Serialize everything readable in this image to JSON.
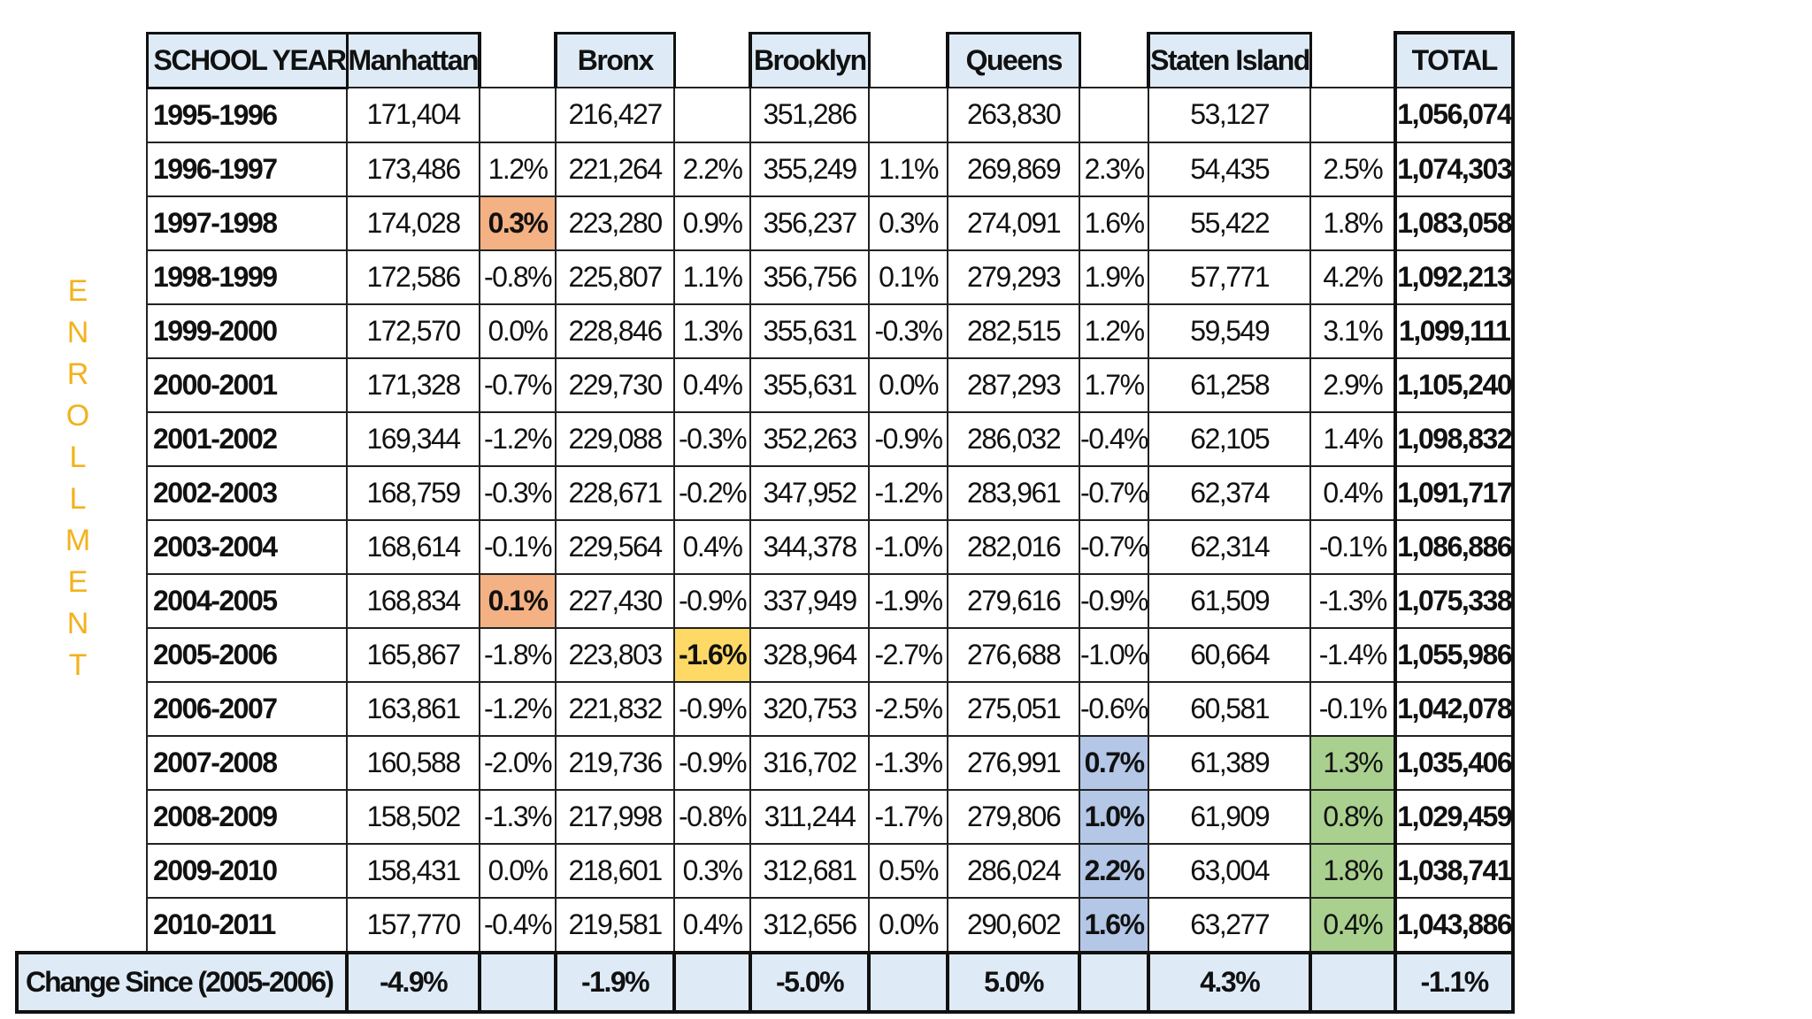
{
  "side_label": "ENROLLMENT",
  "headers": {
    "school_year": "SCHOOL YEAR",
    "manhattan": "Manhattan",
    "bronx": "Bronx",
    "brooklyn": "Brooklyn",
    "queens": "Queens",
    "staten_island": "Staten Island",
    "total": "TOTAL"
  },
  "rows": [
    [
      "1995-1996",
      "171,404",
      "",
      "216,427",
      "",
      "351,286",
      "",
      "263,830",
      "",
      "53,127",
      "",
      "1,056,074"
    ],
    [
      "1996-1997",
      "173,486",
      "1.2%",
      "221,264",
      "2.2%",
      "355,249",
      "1.1%",
      "269,869",
      "2.3%",
      "54,435",
      "2.5%",
      "1,074,303"
    ],
    [
      "1997-1998",
      "174,028",
      "0.3%",
      "223,280",
      "0.9%",
      "356,237",
      "0.3%",
      "274,091",
      "1.6%",
      "55,422",
      "1.8%",
      "1,083,058"
    ],
    [
      "1998-1999",
      "172,586",
      "-0.8%",
      "225,807",
      "1.1%",
      "356,756",
      "0.1%",
      "279,293",
      "1.9%",
      "57,771",
      "4.2%",
      "1,092,213"
    ],
    [
      "1999-2000",
      "172,570",
      "0.0%",
      "228,846",
      "1.3%",
      "355,631",
      "-0.3%",
      "282,515",
      "1.2%",
      "59,549",
      "3.1%",
      "1,099,111"
    ],
    [
      "2000-2001",
      "171,328",
      "-0.7%",
      "229,730",
      "0.4%",
      "355,631",
      "0.0%",
      "287,293",
      "1.7%",
      "61,258",
      "2.9%",
      "1,105,240"
    ],
    [
      "2001-2002",
      "169,344",
      "-1.2%",
      "229,088",
      "-0.3%",
      "352,263",
      "-0.9%",
      "286,032",
      "-0.4%",
      "62,105",
      "1.4%",
      "1,098,832"
    ],
    [
      "2002-2003",
      "168,759",
      "-0.3%",
      "228,671",
      "-0.2%",
      "347,952",
      "-1.2%",
      "283,961",
      "-0.7%",
      "62,374",
      "0.4%",
      "1,091,717"
    ],
    [
      "2003-2004",
      "168,614",
      "-0.1%",
      "229,564",
      "0.4%",
      "344,378",
      "-1.0%",
      "282,016",
      "-0.7%",
      "62,314",
      "-0.1%",
      "1,086,886"
    ],
    [
      "2004-2005",
      "168,834",
      "0.1%",
      "227,430",
      "-0.9%",
      "337,949",
      "-1.9%",
      "279,616",
      "-0.9%",
      "61,509",
      "-1.3%",
      "1,075,338"
    ],
    [
      "2005-2006",
      "165,867",
      "-1.8%",
      "223,803",
      "-1.6%",
      "328,964",
      "-2.7%",
      "276,688",
      "-1.0%",
      "60,664",
      "-1.4%",
      "1,055,986"
    ],
    [
      "2006-2007",
      "163,861",
      "-1.2%",
      "221,832",
      "-0.9%",
      "320,753",
      "-2.5%",
      "275,051",
      "-0.6%",
      "60,581",
      "-0.1%",
      "1,042,078"
    ],
    [
      "2007-2008",
      "160,588",
      "-2.0%",
      "219,736",
      "-0.9%",
      "316,702",
      "-1.3%",
      "276,991",
      "0.7%",
      "61,389",
      "1.3%",
      "1,035,406"
    ],
    [
      "2008-2009",
      "158,502",
      "-1.3%",
      "217,998",
      "-0.8%",
      "311,244",
      "-1.7%",
      "279,806",
      "1.0%",
      "61,909",
      "0.8%",
      "1,029,459"
    ],
    [
      "2009-2010",
      "158,431",
      "0.0%",
      "218,601",
      "0.3%",
      "312,681",
      "0.5%",
      "286,024",
      "2.2%",
      "63,004",
      "1.8%",
      "1,038,741"
    ],
    [
      "2010-2011",
      "157,770",
      "-0.4%",
      "219,581",
      "0.4%",
      "312,656",
      "0.0%",
      "290,602",
      "1.6%",
      "63,277",
      "0.4%",
      "1,043,886"
    ]
  ],
  "highlights": {
    "orange": "#f4b183",
    "yellow": "#ffd966",
    "blue": "#b4c7e7",
    "green": "#a9d08e",
    "header_fill": "#deebf7",
    "side_label_color": "#f2b21c"
  },
  "change_row": {
    "label": "Change Since (2005-2006)",
    "manhattan": "-4.9%",
    "bronx": "-1.9%",
    "brooklyn": "-5.0%",
    "queens": "5.0%",
    "staten_island": "4.3%",
    "total": "-1.1%"
  }
}
